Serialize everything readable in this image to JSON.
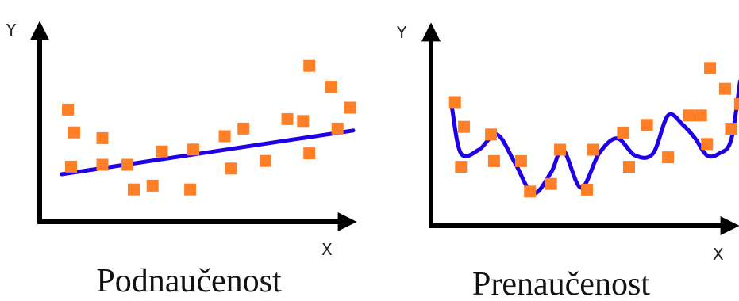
{
  "colors": {
    "points": "#ff7f27",
    "line": "#1f00e6",
    "axes": "#000000"
  },
  "chart_data": [
    {
      "type": "scatter",
      "title": "Podnaučenost",
      "xlabel": "X",
      "ylabel": "Y",
      "xlim": [
        0,
        100
      ],
      "ylim": [
        0,
        100
      ],
      "grid": false,
      "points": [
        {
          "x": 9,
          "y": 59
        },
        {
          "x": 11,
          "y": 47
        },
        {
          "x": 10,
          "y": 29
        },
        {
          "x": 20,
          "y": 44
        },
        {
          "x": 20,
          "y": 30
        },
        {
          "x": 28,
          "y": 30
        },
        {
          "x": 30,
          "y": 17
        },
        {
          "x": 36,
          "y": 19
        },
        {
          "x": 39,
          "y": 37
        },
        {
          "x": 48,
          "y": 17
        },
        {
          "x": 49,
          "y": 38
        },
        {
          "x": 59,
          "y": 45
        },
        {
          "x": 61,
          "y": 28
        },
        {
          "x": 65,
          "y": 49
        },
        {
          "x": 72,
          "y": 32
        },
        {
          "x": 79,
          "y": 54
        },
        {
          "x": 84,
          "y": 53
        },
        {
          "x": 86,
          "y": 36
        },
        {
          "x": 86,
          "y": 82
        },
        {
          "x": 93,
          "y": 71
        },
        {
          "x": 95,
          "y": 49
        },
        {
          "x": 99,
          "y": 60
        }
      ],
      "fit": {
        "kind": "linear",
        "x": [
          7,
          100
        ],
        "y": [
          25,
          48
        ]
      }
    },
    {
      "type": "scatter",
      "title": "Prenaučenost",
      "xlabel": "X",
      "ylabel": "Y",
      "xlim": [
        0,
        100
      ],
      "ylim": [
        0,
        100
      ],
      "grid": false,
      "points": [
        {
          "x": 8,
          "y": 65
        },
        {
          "x": 11,
          "y": 52
        },
        {
          "x": 10,
          "y": 31
        },
        {
          "x": 20,
          "y": 48
        },
        {
          "x": 21,
          "y": 34
        },
        {
          "x": 30,
          "y": 34
        },
        {
          "x": 33,
          "y": 18
        },
        {
          "x": 40,
          "y": 22
        },
        {
          "x": 43,
          "y": 40
        },
        {
          "x": 52,
          "y": 19
        },
        {
          "x": 54,
          "y": 40
        },
        {
          "x": 64,
          "y": 49
        },
        {
          "x": 66,
          "y": 31
        },
        {
          "x": 72,
          "y": 53
        },
        {
          "x": 79,
          "y": 36
        },
        {
          "x": 86,
          "y": 58
        },
        {
          "x": 90,
          "y": 58
        },
        {
          "x": 92,
          "y": 43
        },
        {
          "x": 93,
          "y": 83
        },
        {
          "x": 98,
          "y": 72
        },
        {
          "x": 100,
          "y": 51
        },
        {
          "x": 103,
          "y": 64
        }
      ],
      "fit": {
        "kind": "interpolating-curve",
        "x": [
          7,
          10,
          16,
          22,
          28,
          34,
          40,
          44,
          50,
          56,
          62,
          68,
          74,
          79,
          84,
          88,
          92,
          96,
          100,
          103
        ],
        "y": [
          62,
          38,
          40,
          48,
          33,
          17,
          28,
          40,
          20,
          38,
          46,
          37,
          38,
          58,
          53,
          46,
          37,
          38,
          45,
          76
        ]
      }
    }
  ]
}
